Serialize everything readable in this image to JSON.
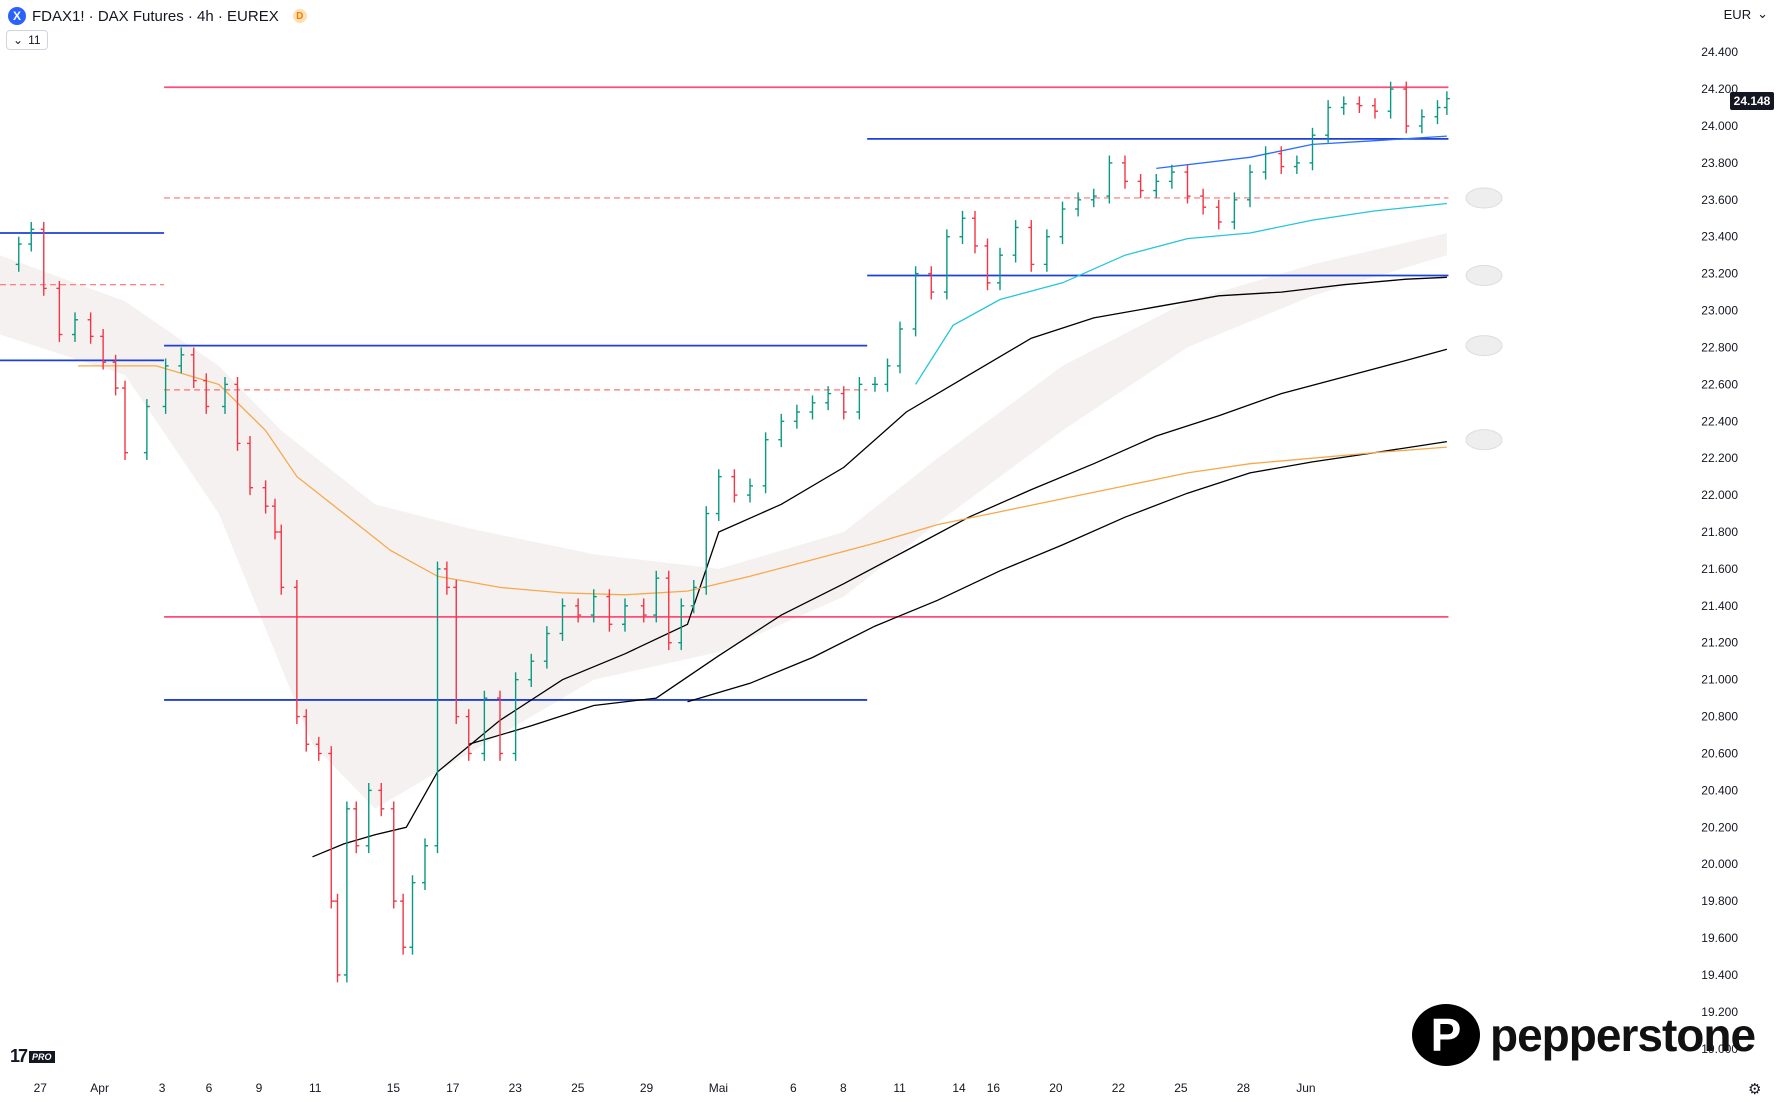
{
  "header": {
    "symbol_icon": "X",
    "title": "FDAX1! · DAX Futures · 4h · EUREX",
    "delay_badge": "D",
    "indicator_count": "11",
    "currency": "EUR"
  },
  "chart_data": {
    "type": "line",
    "title": "FDAX1! · DAX Futures · 4h · EUREX",
    "y_range": [
      18950,
      24520
    ],
    "y_ticks": [
      19000,
      19200,
      19400,
      19600,
      19800,
      20000,
      20200,
      20400,
      20600,
      20800,
      21000,
      21200,
      21400,
      21600,
      21800,
      22000,
      22200,
      22400,
      22600,
      22800,
      23000,
      23200,
      23400,
      23600,
      23800,
      24000,
      24200,
      24400
    ],
    "y_tick_labels": [
      "19.000",
      "19.200",
      "19.400",
      "19.600",
      "19.800",
      "20.000",
      "20.200",
      "20.400",
      "20.600",
      "20.800",
      "21.000",
      "21.200",
      "21.400",
      "21.600",
      "21.800",
      "22.000",
      "22.200",
      "22.400",
      "22.600",
      "22.800",
      "23.000",
      "23.200",
      "23.400",
      "23.600",
      "23.800",
      "24.000",
      "24.200",
      "24.400"
    ],
    "x_tick_labels": [
      "27",
      "Apr",
      "3",
      "6",
      "9",
      "11",
      "15",
      "17",
      "23",
      "25",
      "29",
      "Mai",
      "6",
      "8",
      "11",
      "14",
      "16",
      "20",
      "22",
      "25",
      "28",
      "Jun"
    ],
    "last_price": 24148,
    "last_price_label": "24.148",
    "price_path": [
      [
        0.0,
        23250
      ],
      [
        1.2,
        23360
      ],
      [
        2.0,
        23440
      ],
      [
        2.8,
        23120
      ],
      [
        3.8,
        22870
      ],
      [
        4.8,
        22950
      ],
      [
        5.8,
        22860
      ],
      [
        6.6,
        22720
      ],
      [
        7.4,
        22580
      ],
      [
        8.0,
        22230
      ],
      [
        9.4,
        22480
      ],
      [
        10.6,
        22700
      ],
      [
        11.6,
        22760
      ],
      [
        12.4,
        22620
      ],
      [
        13.2,
        22480
      ],
      [
        14.4,
        22600
      ],
      [
        15.2,
        22280
      ],
      [
        16.0,
        22040
      ],
      [
        17.0,
        21940
      ],
      [
        17.6,
        21800
      ],
      [
        18.0,
        21500
      ],
      [
        19.0,
        20800
      ],
      [
        19.6,
        20650
      ],
      [
        20.4,
        20600
      ],
      [
        21.2,
        19800
      ],
      [
        21.6,
        19400
      ],
      [
        22.2,
        20300
      ],
      [
        22.8,
        20100
      ],
      [
        23.6,
        20400
      ],
      [
        24.4,
        20300
      ],
      [
        25.2,
        19800
      ],
      [
        25.8,
        19550
      ],
      [
        26.4,
        19900
      ],
      [
        27.2,
        20100
      ],
      [
        28.0,
        21600
      ],
      [
        28.6,
        21500
      ],
      [
        29.2,
        20800
      ],
      [
        30.0,
        20600
      ],
      [
        31.0,
        20900
      ],
      [
        32.0,
        20600
      ],
      [
        33.0,
        21000
      ],
      [
        34.0,
        21100
      ],
      [
        35.0,
        21250
      ],
      [
        36.0,
        21400
      ],
      [
        37.0,
        21350
      ],
      [
        38.0,
        21450
      ],
      [
        39.0,
        21300
      ],
      [
        40.0,
        21400
      ],
      [
        41.2,
        21350
      ],
      [
        42.0,
        21550
      ],
      [
        42.8,
        21200
      ],
      [
        43.6,
        21400
      ],
      [
        44.4,
        21500
      ],
      [
        45.2,
        21900
      ],
      [
        46.0,
        22100
      ],
      [
        47.0,
        22000
      ],
      [
        48.0,
        22050
      ],
      [
        49.0,
        22300
      ],
      [
        50.0,
        22400
      ],
      [
        51.0,
        22450
      ],
      [
        52.0,
        22500
      ],
      [
        53.0,
        22550
      ],
      [
        54.0,
        22450
      ],
      [
        55.0,
        22600
      ],
      [
        56.0,
        22600
      ],
      [
        56.8,
        22700
      ],
      [
        57.6,
        22900
      ],
      [
        58.6,
        23200
      ],
      [
        59.6,
        23100
      ],
      [
        60.6,
        23400
      ],
      [
        61.6,
        23500
      ],
      [
        62.4,
        23350
      ],
      [
        63.2,
        23150
      ],
      [
        64.0,
        23300
      ],
      [
        65.0,
        23450
      ],
      [
        66.0,
        23250
      ],
      [
        67.0,
        23400
      ],
      [
        68.0,
        23550
      ],
      [
        69.0,
        23600
      ],
      [
        70.0,
        23620
      ],
      [
        71.0,
        23800
      ],
      [
        72.0,
        23700
      ],
      [
        73.0,
        23650
      ],
      [
        74.0,
        23700
      ],
      [
        75.0,
        23750
      ],
      [
        76.0,
        23620
      ],
      [
        77.0,
        23560
      ],
      [
        78.0,
        23480
      ],
      [
        79.0,
        23600
      ],
      [
        80.0,
        23750
      ],
      [
        81.0,
        23850
      ],
      [
        82.0,
        23780
      ],
      [
        83.0,
        23800
      ],
      [
        84.0,
        23950
      ],
      [
        85.0,
        24100
      ],
      [
        86.0,
        24120
      ],
      [
        87.0,
        24110
      ],
      [
        88.0,
        24080
      ],
      [
        89.0,
        24200
      ],
      [
        90.0,
        24000
      ],
      [
        91.0,
        24050
      ],
      [
        92.0,
        24100
      ],
      [
        92.6,
        24148
      ]
    ],
    "x_ticks_at": [
      2.0,
      5.8,
      9.8,
      12.8,
      16.0,
      19.6,
      24.6,
      28.4,
      32.4,
      36.4,
      40.8,
      45.4,
      50.2,
      53.4,
      57.0,
      60.8,
      63.0,
      67.0,
      71.0,
      75.0,
      79.0,
      83.0
    ],
    "x_range": [
      0,
      96
    ],
    "levels": [
      {
        "y": 24210,
        "x": [
          10.5,
          100
        ],
        "color": "#ff4d7a",
        "style": "solid"
      },
      {
        "y": 23930,
        "x": [
          55.5,
          100
        ],
        "color": "#1e3fd8",
        "style": "solid"
      },
      {
        "y": 23610,
        "x": [
          10.5,
          100
        ],
        "color": "#ff7070",
        "style": "dashed"
      },
      {
        "y": 23420,
        "x": [
          0,
          10.5
        ],
        "color": "#1e3fd8",
        "style": "solid"
      },
      {
        "y": 23190,
        "x": [
          55.5,
          100
        ],
        "color": "#1e3fd8",
        "style": "solid"
      },
      {
        "y": 23140,
        "x": [
          0,
          10.5
        ],
        "color": "#ff7070",
        "style": "dashed"
      },
      {
        "y": 22810,
        "x": [
          10.5,
          55.5
        ],
        "color": "#1e3fd8",
        "style": "solid"
      },
      {
        "y": 22730,
        "x": [
          0,
          10.5
        ],
        "color": "#1e3fd8",
        "style": "solid"
      },
      {
        "y": 22570,
        "x": [
          10.5,
          55.5
        ],
        "color": "#ff7070",
        "style": "dashed"
      },
      {
        "y": 21340,
        "x": [
          10.5,
          100
        ],
        "color": "#ff4d7a",
        "style": "solid"
      },
      {
        "y": 20890,
        "x": [
          10.5,
          55.5
        ],
        "color": "#1e3fd8",
        "style": "solid"
      }
    ],
    "series": [
      {
        "kind": "ma",
        "color": "#2b6cff",
        "points": [
          [
            74,
            23770
          ],
          [
            80,
            23830
          ],
          [
            84,
            23900
          ],
          [
            88,
            23920
          ],
          [
            92.6,
            23945
          ]
        ]
      },
      {
        "kind": "ma",
        "color": "#26c6da",
        "points": [
          [
            58.6,
            22600
          ],
          [
            61,
            22920
          ],
          [
            64,
            23060
          ],
          [
            68,
            23150
          ],
          [
            72,
            23300
          ],
          [
            76,
            23390
          ],
          [
            80,
            23420
          ],
          [
            84,
            23490
          ],
          [
            88,
            23540
          ],
          [
            92.6,
            23580
          ]
        ]
      },
      {
        "kind": "ma",
        "color": "#000000",
        "points": [
          [
            20,
            20040
          ],
          [
            22,
            20110
          ],
          [
            24,
            20160
          ],
          [
            26,
            20200
          ],
          [
            28,
            20500
          ],
          [
            32,
            20780
          ],
          [
            36,
            21000
          ],
          [
            40,
            21140
          ],
          [
            44,
            21300
          ],
          [
            46,
            21800
          ],
          [
            50,
            21950
          ],
          [
            54,
            22150
          ],
          [
            58,
            22450
          ],
          [
            62,
            22650
          ],
          [
            66,
            22850
          ],
          [
            70,
            22960
          ],
          [
            74,
            23020
          ],
          [
            78,
            23080
          ],
          [
            82,
            23100
          ],
          [
            86,
            23140
          ],
          [
            90,
            23170
          ],
          [
            92.6,
            23180
          ]
        ]
      },
      {
        "kind": "ma",
        "color": "#000000",
        "points": [
          [
            30,
            20650
          ],
          [
            34,
            20750
          ],
          [
            38,
            20860
          ],
          [
            42,
            20900
          ],
          [
            46,
            21130
          ],
          [
            50,
            21350
          ],
          [
            54,
            21520
          ],
          [
            58,
            21700
          ],
          [
            62,
            21880
          ],
          [
            66,
            22030
          ],
          [
            70,
            22170
          ],
          [
            74,
            22320
          ],
          [
            78,
            22430
          ],
          [
            82,
            22550
          ],
          [
            86,
            22640
          ],
          [
            90,
            22730
          ],
          [
            92.6,
            22790
          ]
        ]
      },
      {
        "kind": "ma",
        "color": "#000000",
        "points": [
          [
            44,
            20880
          ],
          [
            48,
            20980
          ],
          [
            52,
            21120
          ],
          [
            56,
            21290
          ],
          [
            60,
            21430
          ],
          [
            64,
            21590
          ],
          [
            68,
            21730
          ],
          [
            72,
            21880
          ],
          [
            76,
            22010
          ],
          [
            80,
            22120
          ],
          [
            84,
            22180
          ],
          [
            88,
            22230
          ],
          [
            92.6,
            22290
          ]
        ]
      },
      {
        "kind": "ma",
        "color": "#f7a94a",
        "points": [
          [
            5,
            22700
          ],
          [
            10,
            22700
          ],
          [
            14,
            22600
          ],
          [
            17,
            22350
          ],
          [
            19,
            22100
          ],
          [
            22,
            21900
          ],
          [
            25,
            21700
          ],
          [
            28,
            21560
          ],
          [
            32,
            21500
          ],
          [
            36,
            21470
          ],
          [
            40,
            21460
          ],
          [
            44,
            21480
          ],
          [
            48,
            21560
          ],
          [
            52,
            21650
          ],
          [
            56,
            21740
          ],
          [
            60,
            21840
          ],
          [
            64,
            21910
          ],
          [
            68,
            21980
          ],
          [
            72,
            22050
          ],
          [
            76,
            22120
          ],
          [
            80,
            22170
          ],
          [
            84,
            22200
          ],
          [
            88,
            22230
          ],
          [
            92.6,
            22260
          ]
        ]
      }
    ]
  },
  "branding": {
    "tv_mark": "17",
    "tv_pro": "PRO",
    "broker_mark": "P",
    "broker_name": "pepperstone"
  }
}
